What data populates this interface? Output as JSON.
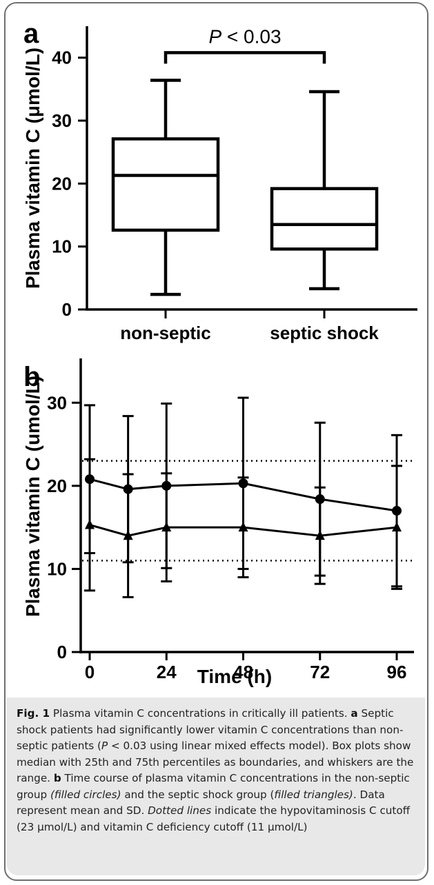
{
  "panel_a_letter": "a",
  "panel_b_letter": "b",
  "caption": {
    "fig_label": "Fig. 1",
    "segments": [
      {
        "t": "Plasma vitamin C concentrations in critically ill patients. ",
        "s": "n"
      },
      {
        "t": "a",
        "s": "b"
      },
      {
        "t": " Septic shock patients had significantly lower vitamin C concentrations than non-septic patients (",
        "s": "n"
      },
      {
        "t": "P",
        "s": "i"
      },
      {
        "t": " < 0.03 using linear mixed effects model). Box plots show median with 25th and 75th percentiles as boundaries, and whiskers are the range. ",
        "s": "n"
      },
      {
        "t": "b",
        "s": "b"
      },
      {
        "t": " Time course of plasma vitamin C concentrations in the non-septic group ",
        "s": "n"
      },
      {
        "t": "(filled circles)",
        "s": "i"
      },
      {
        "t": " and the septic shock group (",
        "s": "n"
      },
      {
        "t": "filled triangles)",
        "s": "i"
      },
      {
        "t": ". Data represent mean and SD. ",
        "s": "n"
      },
      {
        "t": "Dotted lines",
        "s": "i"
      },
      {
        "t": " indicate the hypovitaminosis C cutoff (23 μmol/L) and vitamin C deficiency cutoff (11 μmol/L)",
        "s": "n"
      }
    ]
  },
  "chart_data": [
    {
      "type": "box",
      "panel": "a",
      "ylabel": "Plasma vitamin C (μmol/L)",
      "ylim": [
        0,
        45
      ],
      "yticks": [
        0,
        10,
        20,
        30,
        40
      ],
      "categories": [
        "non-septic",
        "septic shock"
      ],
      "boxes": [
        {
          "category": "non-septic",
          "min": 2.4,
          "q1": 12.6,
          "median": 21.3,
          "q3": 27.1,
          "max": 36.4
        },
        {
          "category": "septic shock",
          "min": 3.3,
          "q1": 9.6,
          "median": 13.5,
          "q3": 19.2,
          "max": 34.6
        }
      ],
      "annotation": {
        "italic": "P",
        "text": " < 0.03",
        "bracket_y": 40.8
      }
    },
    {
      "type": "line",
      "panel": "b",
      "xlabel": "Time (h)",
      "ylabel": "Plasma vitamin C (umol/L)",
      "xlim": [
        -6,
        102
      ],
      "ylim": [
        0,
        35
      ],
      "xticks": [
        0,
        24,
        48,
        72,
        96
      ],
      "yticks": [
        0,
        10,
        20,
        30
      ],
      "reference_lines": [
        23,
        11
      ],
      "series": [
        {
          "marker": "circle",
          "x": [
            0,
            12,
            24,
            48,
            72,
            96
          ],
          "y": [
            20.8,
            19.6,
            20.0,
            20.3,
            18.4,
            17.0
          ],
          "sd": [
            8.9,
            8.8,
            9.9,
            10.3,
            9.2,
            9.1
          ]
        },
        {
          "marker": "triangle",
          "x": [
            0,
            12,
            24,
            48,
            72,
            96
          ],
          "y": [
            15.3,
            14.0,
            15.0,
            15.0,
            14.0,
            15.0
          ],
          "sd": [
            7.9,
            7.4,
            6.5,
            6.0,
            5.8,
            7.4
          ]
        }
      ]
    }
  ]
}
